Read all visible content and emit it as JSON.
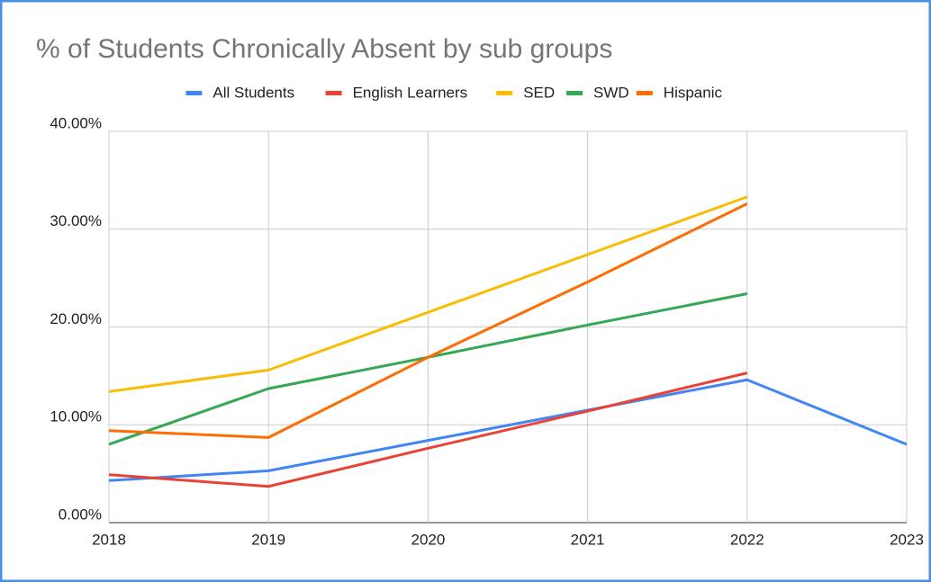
{
  "chart_data": {
    "type": "line",
    "title": "% of Students Chronically Absent by sub groups",
    "x": [
      2018,
      2019,
      2020,
      2021,
      2022,
      2023
    ],
    "xlim": [
      2018,
      2023
    ],
    "xticks": [
      2018,
      2019,
      2020,
      2021,
      2022,
      2023
    ],
    "ylim": [
      0,
      40
    ],
    "yticks": [
      {
        "value": 0,
        "label": "0.00%"
      },
      {
        "value": 10,
        "label": "10.00%"
      },
      {
        "value": 20,
        "label": "20.00%"
      },
      {
        "value": 30,
        "label": "30.00%"
      },
      {
        "value": 40,
        "label": "40.00%"
      }
    ],
    "grid": true,
    "legend": "top",
    "series": [
      {
        "name": "All Students",
        "color": "#4285f4",
        "values": [
          4.3,
          5.3,
          8.4,
          11.5,
          14.6,
          8.0
        ]
      },
      {
        "name": "English Learners",
        "color": "#ea4335",
        "values": [
          4.9,
          3.7,
          7.6,
          11.4,
          15.3,
          null
        ]
      },
      {
        "name": "SED",
        "color": "#fbbc04",
        "values": [
          13.4,
          15.6,
          21.5,
          27.4,
          33.3,
          null
        ]
      },
      {
        "name": "SWD",
        "color": "#34a853",
        "values": [
          8.0,
          13.7,
          16.9,
          20.2,
          23.4,
          null
        ]
      },
      {
        "name": "Hispanic",
        "color": "#ff6d01",
        "values": [
          9.4,
          8.7,
          16.9,
          24.6,
          32.6,
          null
        ]
      }
    ]
  }
}
